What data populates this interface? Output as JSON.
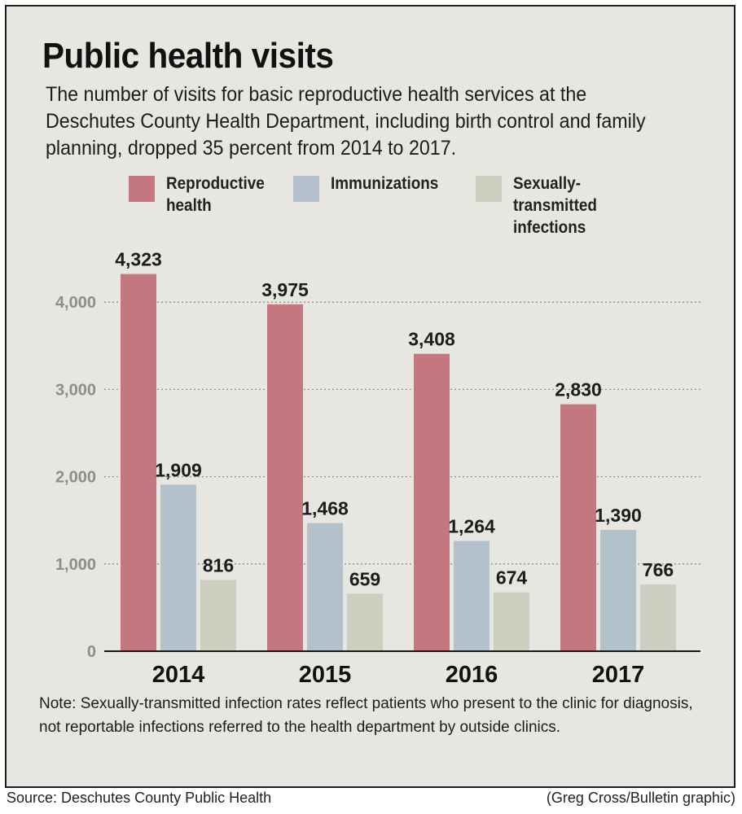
{
  "chart_data": {
    "type": "bar",
    "title": "Public health visits",
    "subtitle": "The number of visits for basic reproductive health services at the Deschutes County Health Department, including birth control and family planning, dropped 35 percent from 2014 to 2017.",
    "categories": [
      "2014",
      "2015",
      "2016",
      "2017"
    ],
    "series": [
      {
        "name": "Reproductive health",
        "values": [
          4323,
          3975,
          3408,
          2830
        ],
        "labels": [
          "4,323",
          "3,975",
          "3,408",
          "2,830"
        ],
        "color": "#c4777e"
      },
      {
        "name": "Immunizations",
        "values": [
          1909,
          1468,
          1264,
          1390
        ],
        "labels": [
          "1,909",
          "1,468",
          "1,264",
          "1,390"
        ],
        "color": "#b2c1ca"
      },
      {
        "name": "Sexually-transmitted infections",
        "values": [
          816,
          659,
          674,
          766
        ],
        "labels": [
          "816",
          "659",
          "674",
          "766"
        ],
        "color": "#cccebf"
      }
    ],
    "legend_labels": [
      "Reproductive\nhealth",
      "Immunizations",
      "Sexually-\ntransmitted\ninfections"
    ],
    "y_ticks": [
      0,
      1000,
      2000,
      3000,
      4000
    ],
    "y_tick_labels": [
      "0",
      "1,000",
      "2,000",
      "3,000",
      "4,000"
    ],
    "ylim": [
      0,
      4500
    ],
    "grid": "horizontal dotted",
    "legend_position": "top",
    "note": "Note: Sexually-transmitted infection rates reflect patients who present to the clinic for diagnosis, not reportable infections referred to the health department by outside clinics.",
    "source": "Source: Deschutes County Public Health",
    "credit": "(Greg Cross/Bulletin graphic)"
  }
}
